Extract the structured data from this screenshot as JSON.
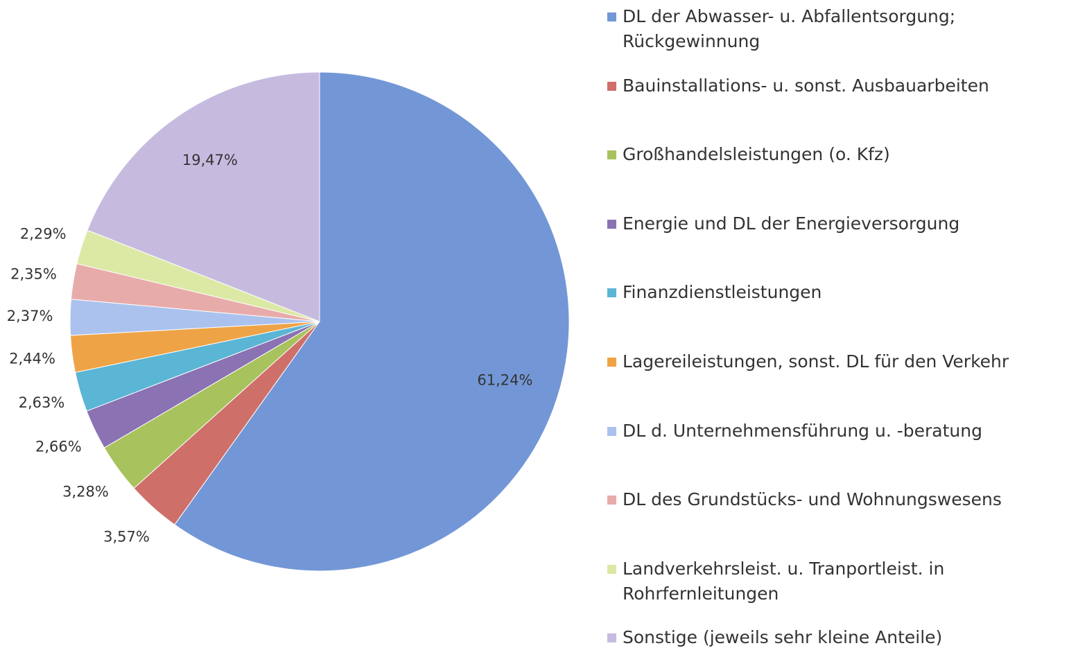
{
  "chart_data": {
    "type": "pie",
    "categories": [
      "DL der Abwasser- u. Abfallentsorgung; Rückgewinnung",
      "Bauinstallations- u. sonst. Ausbauarbeiten",
      "Großhandelsleistungen (o. Kfz)",
      "Energie und DL der Energieversorgung",
      "Finanzdienstleistungen",
      "Lagereileistungen, sonst. DL für den Verkehr",
      "DL d. Unternehmensführung u. -beratung",
      "DL des Grundstücks- und Wohnungswesens",
      "Landverkehrsleist. u. Tranportleist. in Rohrfernleitungen",
      "Sonstige (jeweils sehr kleine Anteile)"
    ],
    "values": [
      61.24,
      3.57,
      3.28,
      2.66,
      2.63,
      2.44,
      2.37,
      2.35,
      2.29,
      19.47
    ],
    "value_labels": [
      "61,24%",
      "3,57%",
      "3,28%",
      "2,66%",
      "2,63%",
      "2,44%",
      "2,37%",
      "2,35%",
      "2,29%",
      "19,47%"
    ],
    "colors": [
      "#7397d6",
      "#cf6f69",
      "#a8c25e",
      "#8a72b3",
      "#5bb5d5",
      "#eea346",
      "#abc2ee",
      "#e7acaa",
      "#dbe9a4",
      "#c6bbdf"
    ],
    "legend": "right"
  }
}
